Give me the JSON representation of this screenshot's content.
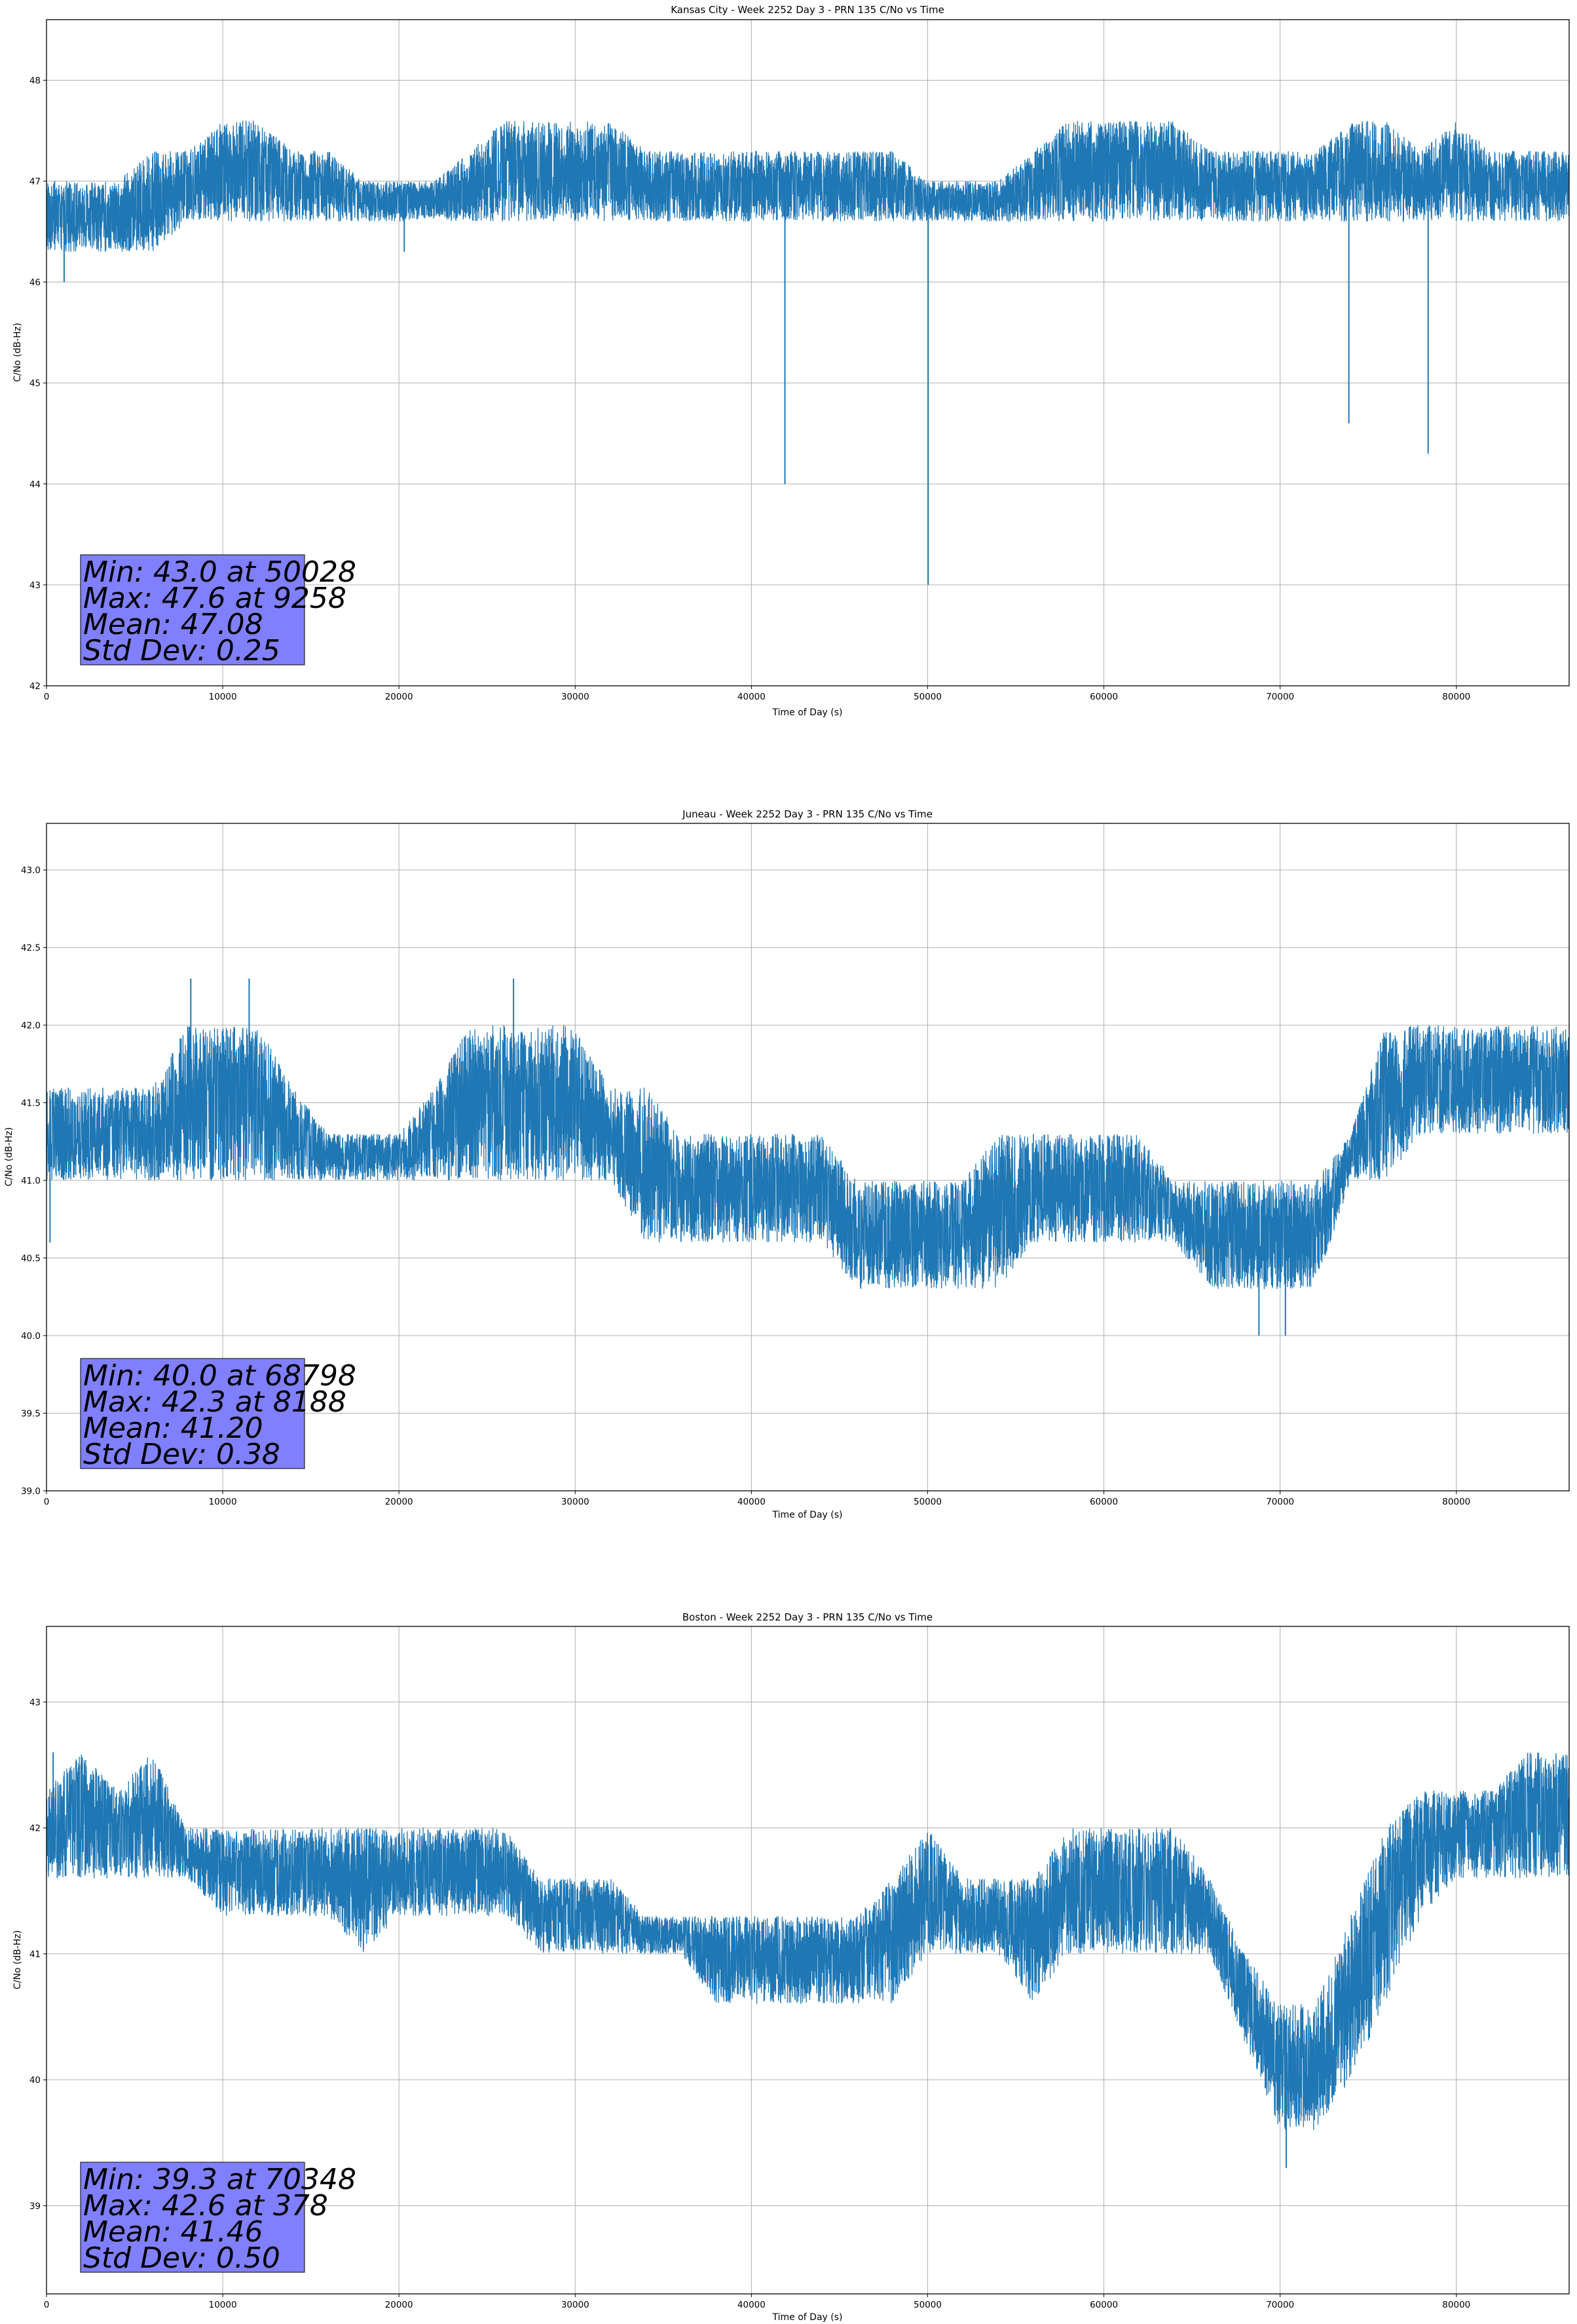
{
  "chart_data": [
    {
      "type": "line",
      "title": "Kansas City - Week 2252 Day 3 - PRN 135 C/No vs Time",
      "xlabel": "Time of Day (s)",
      "ylabel": "C/No (dB-Hz)",
      "xlim": [
        0,
        86400
      ],
      "ylim": [
        42,
        48.6
      ],
      "xticks": [
        0,
        10000,
        20000,
        30000,
        40000,
        50000,
        60000,
        70000,
        80000
      ],
      "xtick_labels": [
        "0",
        "10000",
        "20000",
        "30000",
        "40000",
        "50000",
        "60000",
        "70000",
        "80000"
      ],
      "yticks": [
        42,
        43,
        44,
        45,
        46,
        47,
        48
      ],
      "ytick_labels": [
        "42",
        "43",
        "44",
        "45",
        "46",
        "47",
        "48"
      ],
      "grid": true,
      "color": "#1f77b4",
      "series": [
        {
          "name": "",
          "x": [
            0,
            2000,
            4000,
            6000,
            8000,
            10000,
            12000,
            14000,
            16000,
            18000,
            20000,
            22000,
            24000,
            26000,
            28000,
            30000,
            32000,
            34000,
            36000,
            38000,
            40000,
            42000,
            44000,
            46000,
            48000,
            50000,
            52000,
            54000,
            56000,
            58000,
            60000,
            62000,
            64000,
            66000,
            68000,
            70000,
            72000,
            74000,
            76000,
            78000,
            80000,
            82000,
            84000,
            86000
          ],
          "low": [
            46.3,
            46.3,
            46.3,
            46.3,
            46.6,
            46.6,
            46.6,
            46.6,
            46.6,
            46.6,
            46.6,
            46.6,
            46.6,
            46.6,
            46.6,
            46.6,
            46.6,
            46.6,
            46.6,
            46.6,
            46.6,
            46.6,
            46.6,
            46.6,
            46.6,
            46.6,
            46.6,
            46.6,
            46.6,
            46.6,
            46.6,
            46.6,
            46.6,
            46.6,
            46.6,
            46.6,
            46.6,
            46.6,
            46.6,
            46.6,
            46.6,
            46.6,
            46.6,
            46.6
          ],
          "high": [
            47.0,
            47.0,
            47.0,
            47.3,
            47.3,
            47.6,
            47.6,
            47.3,
            47.3,
            47.0,
            47.0,
            47.0,
            47.3,
            47.6,
            47.6,
            47.6,
            47.6,
            47.3,
            47.3,
            47.3,
            47.3,
            47.3,
            47.3,
            47.3,
            47.3,
            47.0,
            47.0,
            47.0,
            47.3,
            47.6,
            47.6,
            47.6,
            47.6,
            47.3,
            47.3,
            47.3,
            47.3,
            47.6,
            47.6,
            47.3,
            47.6,
            47.3,
            47.3,
            47.3
          ],
          "dips": [
            {
              "x": 1000,
              "y": 46.0
            },
            {
              "x": 20300,
              "y": 46.3
            },
            {
              "x": 41900,
              "y": 44.0
            },
            {
              "x": 50028,
              "y": 43.0
            },
            {
              "x": 73900,
              "y": 44.6
            },
            {
              "x": 78400,
              "y": 44.3
            }
          ]
        }
      ],
      "stats": [
        "Min: 43.0 at 50028",
        "Max: 47.6 at 9258",
        "Mean: 47.08",
        "Std Dev: 0.25"
      ],
      "stats_box_color": "#8080ff"
    },
    {
      "type": "line",
      "title": "Juneau - Week 2252 Day 3 - PRN 135 C/No vs Time",
      "xlabel": "Time of Day (s)",
      "ylabel": "C/No (dB-Hz)",
      "xlim": [
        0,
        86400
      ],
      "ylim": [
        39.0,
        43.3
      ],
      "xticks": [
        0,
        10000,
        20000,
        30000,
        40000,
        50000,
        60000,
        70000,
        80000
      ],
      "xtick_labels": [
        "0",
        "10000",
        "20000",
        "30000",
        "40000",
        "50000",
        "60000",
        "70000",
        "80000"
      ],
      "yticks": [
        39.0,
        39.5,
        40.0,
        40.5,
        41.0,
        41.5,
        42.0,
        42.5,
        43.0
      ],
      "ytick_labels": [
        "39.0",
        "39.5",
        "40.0",
        "40.5",
        "41.0",
        "41.5",
        "42.0",
        "42.5",
        "43.0"
      ],
      "grid": true,
      "color": "#1f77b4",
      "series": [
        {
          "name": "",
          "x": [
            0,
            2000,
            4000,
            6000,
            8000,
            10000,
            12000,
            14000,
            16000,
            18000,
            20000,
            22000,
            24000,
            26000,
            28000,
            30000,
            32000,
            34000,
            36000,
            38000,
            40000,
            42000,
            44000,
            46000,
            48000,
            50000,
            52000,
            54000,
            56000,
            58000,
            60000,
            62000,
            64000,
            66000,
            68000,
            70000,
            72000,
            74000,
            76000,
            78000,
            80000,
            82000,
            84000,
            86000
          ],
          "low": [
            41.0,
            41.0,
            41.0,
            41.0,
            41.0,
            41.0,
            41.0,
            41.0,
            41.0,
            41.0,
            41.0,
            41.0,
            41.0,
            41.0,
            41.0,
            41.0,
            41.0,
            40.6,
            40.6,
            40.6,
            40.6,
            40.6,
            40.6,
            40.3,
            40.3,
            40.3,
            40.3,
            40.3,
            40.6,
            40.6,
            40.6,
            40.6,
            40.6,
            40.3,
            40.3,
            40.3,
            40.3,
            41.0,
            41.0,
            41.3,
            41.3,
            41.3,
            41.3,
            41.3
          ],
          "high": [
            41.6,
            41.6,
            41.6,
            41.6,
            42.0,
            42.0,
            42.0,
            41.6,
            41.3,
            41.3,
            41.3,
            41.6,
            42.0,
            42.0,
            42.0,
            42.0,
            41.6,
            41.6,
            41.3,
            41.3,
            41.3,
            41.3,
            41.3,
            41.0,
            41.0,
            41.0,
            41.0,
            41.3,
            41.3,
            41.3,
            41.3,
            41.3,
            41.0,
            41.0,
            41.0,
            41.0,
            41.0,
            41.3,
            42.0,
            42.0,
            42.0,
            42.0,
            42.0,
            42.0
          ],
          "dips": [
            {
              "x": 200,
              "y": 40.6
            },
            {
              "x": 8188,
              "y": 42.3
            },
            {
              "x": 11500,
              "y": 42.3
            },
            {
              "x": 26500,
              "y": 42.3
            },
            {
              "x": 68798,
              "y": 40.0
            },
            {
              "x": 70300,
              "y": 40.0
            }
          ]
        }
      ],
      "stats": [
        "Min: 40.0 at 68798",
        "Max: 42.3 at 8188",
        "Mean: 41.20",
        "Std Dev: 0.38"
      ],
      "stats_box_color": "#8080ff"
    },
    {
      "type": "line",
      "title": "Boston - Week 2252 Day 3 - PRN 135 C/No vs Time",
      "xlabel": "Time of Day (s)",
      "ylabel": "C/No (dB-Hz)",
      "xlim": [
        0,
        86400
      ],
      "ylim": [
        38.3,
        43.6
      ],
      "xticks": [
        0,
        10000,
        20000,
        30000,
        40000,
        50000,
        60000,
        70000,
        80000
      ],
      "xtick_labels": [
        "0",
        "10000",
        "20000",
        "30000",
        "40000",
        "50000",
        "60000",
        "70000",
        "80000"
      ],
      "yticks": [
        39,
        40,
        41,
        42,
        43
      ],
      "ytick_labels": [
        "39",
        "40",
        "41",
        "42",
        "43"
      ],
      "grid": true,
      "color": "#1f77b4",
      "series": [
        {
          "name": "",
          "x": [
            0,
            2000,
            4000,
            6000,
            8000,
            10000,
            12000,
            14000,
            16000,
            18000,
            20000,
            22000,
            24000,
            26000,
            28000,
            30000,
            32000,
            34000,
            36000,
            38000,
            40000,
            42000,
            44000,
            46000,
            48000,
            50000,
            52000,
            54000,
            56000,
            58000,
            60000,
            62000,
            64000,
            66000,
            68000,
            70000,
            72000,
            74000,
            76000,
            78000,
            80000,
            82000,
            84000,
            86000
          ],
          "low": [
            41.6,
            41.6,
            41.6,
            41.6,
            41.6,
            41.3,
            41.3,
            41.3,
            41.3,
            41.0,
            41.3,
            41.3,
            41.3,
            41.3,
            41.0,
            41.0,
            41.0,
            41.0,
            41.0,
            40.6,
            40.6,
            40.6,
            40.6,
            40.6,
            40.6,
            41.0,
            41.0,
            41.0,
            40.6,
            41.0,
            41.0,
            41.0,
            41.0,
            41.0,
            40.3,
            39.6,
            39.6,
            40.0,
            40.6,
            41.3,
            41.6,
            41.6,
            41.6,
            41.6
          ],
          "high": [
            42.3,
            42.6,
            42.3,
            42.6,
            42.0,
            42.0,
            42.0,
            42.0,
            42.0,
            42.0,
            42.0,
            42.0,
            42.0,
            42.0,
            41.6,
            41.6,
            41.6,
            41.3,
            41.3,
            41.3,
            41.3,
            41.3,
            41.3,
            41.3,
            41.6,
            42.0,
            41.6,
            41.6,
            41.6,
            42.0,
            42.0,
            42.0,
            42.0,
            41.6,
            41.0,
            40.6,
            40.6,
            41.3,
            42.0,
            42.3,
            42.3,
            42.3,
            42.6,
            42.6
          ],
          "dips": [
            {
              "x": 378,
              "y": 42.6
            },
            {
              "x": 70348,
              "y": 39.3
            }
          ]
        }
      ],
      "stats": [
        "Min: 39.3 at 70348",
        "Max: 42.6 at 378",
        "Mean: 41.46",
        "Std Dev: 0.50"
      ],
      "stats_box_color": "#8080ff"
    }
  ]
}
